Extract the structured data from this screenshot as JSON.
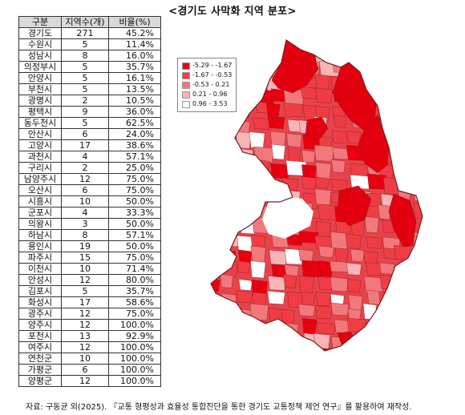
{
  "title": "<경기도 사막화 지역 분포>",
  "table": {
    "headers": [
      "구분",
      "지역수(개)",
      "비율(%)"
    ],
    "rows": [
      [
        "경기도",
        "271",
        "45.2%"
      ],
      [
        "수원시",
        "5",
        "11.4%"
      ],
      [
        "성남시",
        "8",
        "16.0%"
      ],
      [
        "의정부시",
        "5",
        "35.7%"
      ],
      [
        "안양시",
        "5",
        "16.1%"
      ],
      [
        "부천시",
        "5",
        "13.5%"
      ],
      [
        "광명시",
        "2",
        "10.5%"
      ],
      [
        "평택시",
        "9",
        "36.0%"
      ],
      [
        "동두천시",
        "5",
        "62.5%"
      ],
      [
        "안산시",
        "6",
        "24.0%"
      ],
      [
        "고양시",
        "17",
        "38.6%"
      ],
      [
        "과천시",
        "4",
        "57.1%"
      ],
      [
        "구리시",
        "2",
        "25.0%"
      ],
      [
        "남양주시",
        "12",
        "75.0%"
      ],
      [
        "오산시",
        "6",
        "75.0%"
      ],
      [
        "시흥시",
        "10",
        "50.0%"
      ],
      [
        "군포시",
        "4",
        "33.3%"
      ],
      [
        "의왕시",
        "3",
        "50.0%"
      ],
      [
        "하남시",
        "8",
        "57.1%"
      ],
      [
        "용인시",
        "19",
        "50.0%"
      ],
      [
        "파주시",
        "15",
        "75.0%"
      ],
      [
        "이천시",
        "10",
        "71.4%"
      ],
      [
        "안성시",
        "12",
        "80.0%"
      ],
      [
        "김포시",
        "5",
        "35.7%"
      ],
      [
        "화성시",
        "17",
        "58.6%"
      ],
      [
        "광주시",
        "12",
        "75.0%"
      ],
      [
        "양주시",
        "12",
        "100.0%"
      ],
      [
        "포천시",
        "13",
        "92.9%"
      ],
      [
        "여주시",
        "12",
        "100.0%"
      ],
      [
        "연천군",
        "10",
        "100.0%"
      ],
      [
        "가평군",
        "6",
        "100.0%"
      ],
      [
        "양평군",
        "12",
        "100.0%"
      ]
    ]
  },
  "legend": {
    "items": [
      {
        "label": "-5.29 - -1.67",
        "color": "#e8000f"
      },
      {
        "label": "-1.67 - -0.53",
        "color": "#ee3d45"
      },
      {
        "label": "-0.53 - 0.21",
        "color": "#f2787c"
      },
      {
        "label": "0.21 - 0.96",
        "color": "#f8b4b6"
      },
      {
        "label": "0.96 - 3.53",
        "color": "#ffffff"
      }
    ]
  },
  "map_colors": {
    "base": "#e8424a",
    "dark": "#e3000e",
    "light": "#f39a9d",
    "border": "#7a1a1e"
  },
  "source": "자료: 구동균 외(2025). 『교통 형평성과 효율성 통합진단을 통한 경기도 교통정책 제언 연구』를 활용하여 재작성.",
  "chart_data": {
    "type": "table",
    "columns": [
      "구분",
      "지역수(개)",
      "비율(%)"
    ],
    "categories": [
      "경기도",
      "수원시",
      "성남시",
      "의정부시",
      "안양시",
      "부천시",
      "광명시",
      "평택시",
      "동두천시",
      "안산시",
      "고양시",
      "과천시",
      "구리시",
      "남양주시",
      "오산시",
      "시흥시",
      "군포시",
      "의왕시",
      "하남시",
      "용인시",
      "파주시",
      "이천시",
      "안성시",
      "김포시",
      "화성시",
      "광주시",
      "양주시",
      "포천시",
      "여주시",
      "연천군",
      "가평군",
      "양평군"
    ],
    "series": [
      {
        "name": "지역수(개)",
        "values": [
          271,
          5,
          8,
          5,
          5,
          5,
          2,
          9,
          5,
          6,
          17,
          4,
          2,
          12,
          6,
          10,
          4,
          3,
          8,
          19,
          15,
          10,
          12,
          5,
          17,
          12,
          12,
          13,
          12,
          10,
          6,
          12
        ]
      },
      {
        "name": "비율(%)",
        "values": [
          45.2,
          11.4,
          16.0,
          35.7,
          16.1,
          13.5,
          10.5,
          36.0,
          62.5,
          24.0,
          38.6,
          57.1,
          25.0,
          75.0,
          75.0,
          50.0,
          33.3,
          50.0,
          57.1,
          50.0,
          75.0,
          71.4,
          80.0,
          35.7,
          58.6,
          75.0,
          100.0,
          92.9,
          100.0,
          100.0,
          100.0,
          100.0
        ]
      }
    ]
  }
}
